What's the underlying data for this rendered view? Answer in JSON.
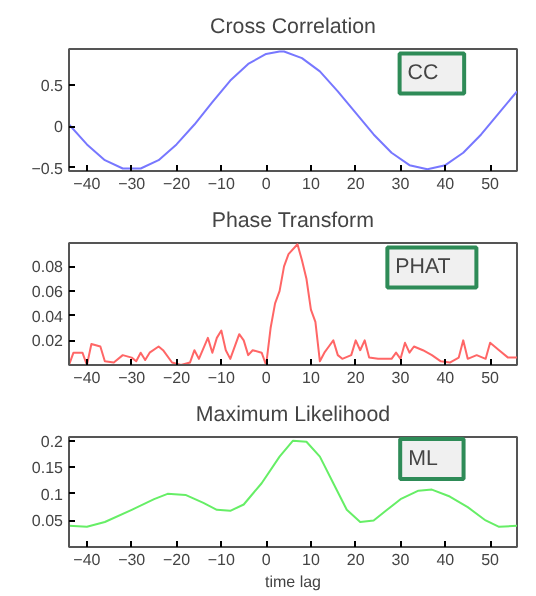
{
  "chart_data": [
    {
      "type": "line",
      "title": "Cross Correlation",
      "annotations": [
        "CC"
      ],
      "grid": false,
      "x": [
        -44,
        -40,
        -36,
        -32,
        -28,
        -24,
        -20,
        -16,
        -12,
        -8,
        -4,
        0,
        3,
        4,
        8,
        12,
        16,
        20,
        24,
        28,
        32,
        36,
        40,
        44,
        48,
        52,
        56
      ],
      "series": [
        {
          "color": "#7777ff",
          "values": [
            0.02,
            -0.22,
            -0.41,
            -0.51,
            -0.51,
            -0.41,
            -0.22,
            0.02,
            0.29,
            0.55,
            0.75,
            0.87,
            0.9,
            0.9,
            0.82,
            0.66,
            0.42,
            0.16,
            -0.1,
            -0.32,
            -0.47,
            -0.52,
            -0.47,
            -0.32,
            -0.1,
            0.16,
            0.42
          ]
        }
      ],
      "xlim": [
        -44,
        56
      ],
      "xticks": [
        -40,
        -30,
        -20,
        -10,
        0,
        10,
        20,
        30,
        40,
        50
      ],
      "ylim": [
        -0.54,
        0.93
      ],
      "yticks": [
        -0.5,
        0,
        0.5
      ]
    },
    {
      "type": "line",
      "title": "Phase Transform",
      "annotations": [
        "PHAT"
      ],
      "grid": false,
      "x": [
        -44,
        -43,
        -41,
        -40,
        -39,
        -37,
        -36,
        -34,
        -32,
        -30,
        -29,
        -28,
        -27,
        -26,
        -24,
        -23,
        -21,
        -19,
        -17,
        -16,
        -15,
        -13,
        -12,
        -11,
        -10,
        -9,
        -8,
        -6,
        -5,
        -4,
        -3,
        -1,
        0,
        1,
        2,
        3,
        4,
        5,
        7,
        8,
        9,
        10,
        11,
        12,
        13,
        14,
        15,
        16,
        17,
        19,
        20,
        21,
        22,
        23,
        25,
        28,
        29,
        30,
        31,
        32,
        33,
        35,
        37,
        39,
        41,
        43,
        44,
        45,
        47,
        49,
        50,
        52,
        54,
        56
      ],
      "series": [
        {
          "color": "#ff6666",
          "values": [
            0.0,
            0.01,
            0.01,
            0.0,
            0.017,
            0.015,
            0.003,
            0.002,
            0.008,
            0.006,
            0.003,
            0.01,
            0.004,
            0.01,
            0.015,
            0.012,
            0.002,
            0.0,
            0.002,
            0.012,
            0.005,
            0.022,
            0.01,
            0.022,
            0.028,
            0.012,
            0.005,
            0.025,
            0.02,
            0.008,
            0.012,
            0.01,
            0.0,
            0.03,
            0.05,
            0.06,
            0.08,
            0.09,
            0.098,
            0.085,
            0.07,
            0.045,
            0.035,
            0.003,
            0.01,
            0.015,
            0.02,
            0.008,
            0.005,
            0.008,
            0.02,
            0.012,
            0.02,
            0.006,
            0.005,
            0.005,
            0.01,
            0.005,
            0.018,
            0.01,
            0.015,
            0.012,
            0.008,
            0.003,
            0.002,
            0.006,
            0.02,
            0.005,
            0.008,
            0.005,
            0.018,
            0.012,
            0.006,
            0.006
          ]
        }
      ],
      "xlim": [
        -44,
        56
      ],
      "xticks": [
        -40,
        -30,
        -20,
        -10,
        0,
        10,
        20,
        30,
        40,
        50
      ],
      "ylim": [
        0,
        0.099
      ],
      "yticks": [
        0.02,
        0.04,
        0.06,
        0.08
      ]
    },
    {
      "type": "line",
      "title": "Maximum Likelihood",
      "xlabel": "time lag",
      "annotations": [
        "ML"
      ],
      "grid": false,
      "x": [
        -44,
        -40,
        -36,
        -30,
        -25,
        -22,
        -18,
        -14,
        -11,
        -8,
        -5,
        -1,
        3,
        6,
        9,
        12,
        15,
        18,
        21,
        24,
        27,
        30,
        34,
        37,
        41,
        45,
        49,
        52,
        56
      ],
      "series": [
        {
          "color": "#66ee66",
          "values": [
            0.04,
            0.038,
            0.047,
            0.07,
            0.09,
            0.1,
            0.098,
            0.083,
            0.07,
            0.068,
            0.08,
            0.12,
            0.17,
            0.2,
            0.198,
            0.17,
            0.12,
            0.07,
            0.047,
            0.05,
            0.07,
            0.09,
            0.106,
            0.108,
            0.095,
            0.075,
            0.05,
            0.038,
            0.04
          ]
        }
      ],
      "xlim": [
        -44,
        56
      ],
      "xticks": [
        -40,
        -30,
        -20,
        -10,
        0,
        10,
        20,
        30,
        40,
        50
      ],
      "ylim": [
        0.0,
        0.207
      ],
      "yticks": [
        0.05,
        0.1,
        0.15,
        0.2
      ]
    }
  ]
}
